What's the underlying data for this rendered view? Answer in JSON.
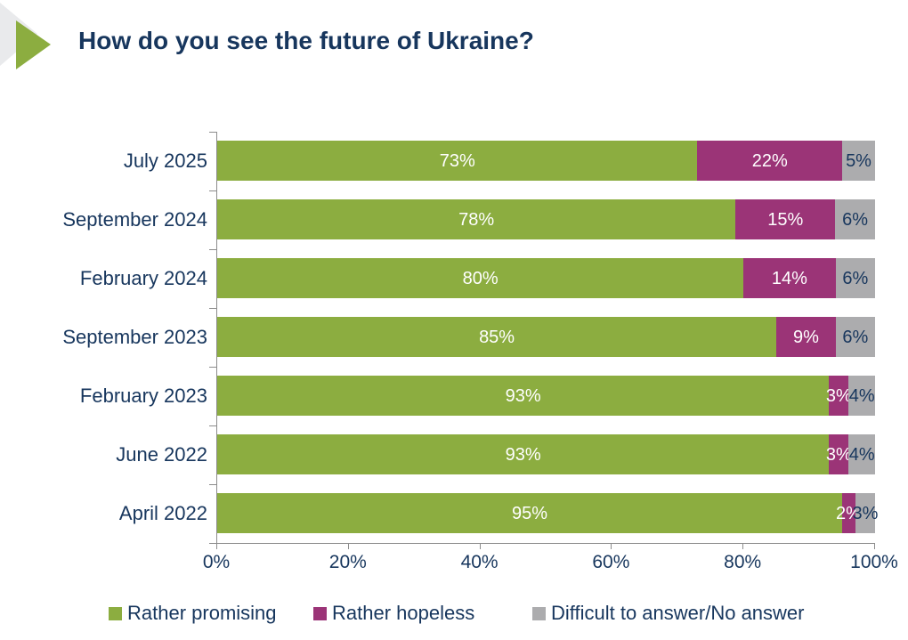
{
  "header": {
    "title": "How do you see the future of Ukraine?"
  },
  "chart_data": {
    "type": "bar",
    "variant": "horizontal-stacked",
    "title": "How do you see the future of Ukraine?",
    "categories": [
      "July 2025",
      "September 2024",
      "February 2024",
      "September 2023",
      "February 2023",
      "June 2022",
      "April 2022"
    ],
    "series": [
      {
        "name": "Rather promising",
        "color": "#8CAD40",
        "values": [
          73,
          78,
          80,
          85,
          93,
          93,
          95
        ]
      },
      {
        "name": "Rather hopeless",
        "color": "#9B3477",
        "values": [
          22,
          15,
          14,
          9,
          3,
          3,
          2
        ]
      },
      {
        "name": "Difficult to answer/No answer",
        "color": "#ACACAE",
        "values": [
          5,
          6,
          6,
          6,
          4,
          4,
          3
        ]
      }
    ],
    "value_suffix": "%",
    "xticks": [
      "0%",
      "20%",
      "40%",
      "60%",
      "80%",
      "100%"
    ],
    "xlim": [
      0,
      100
    ],
    "grid": false,
    "legend_position": "bottom",
    "label_colors": {
      "on_series_0": "#FFFFFF",
      "on_series_1": "#FFFFFF",
      "on_series_2": "#17365D"
    }
  },
  "style": {
    "text_navy": "#17365D",
    "axis_gray": "#8C8C8C",
    "decor_green": "#8CAD40",
    "decor_gray": "#E9EAEC"
  }
}
